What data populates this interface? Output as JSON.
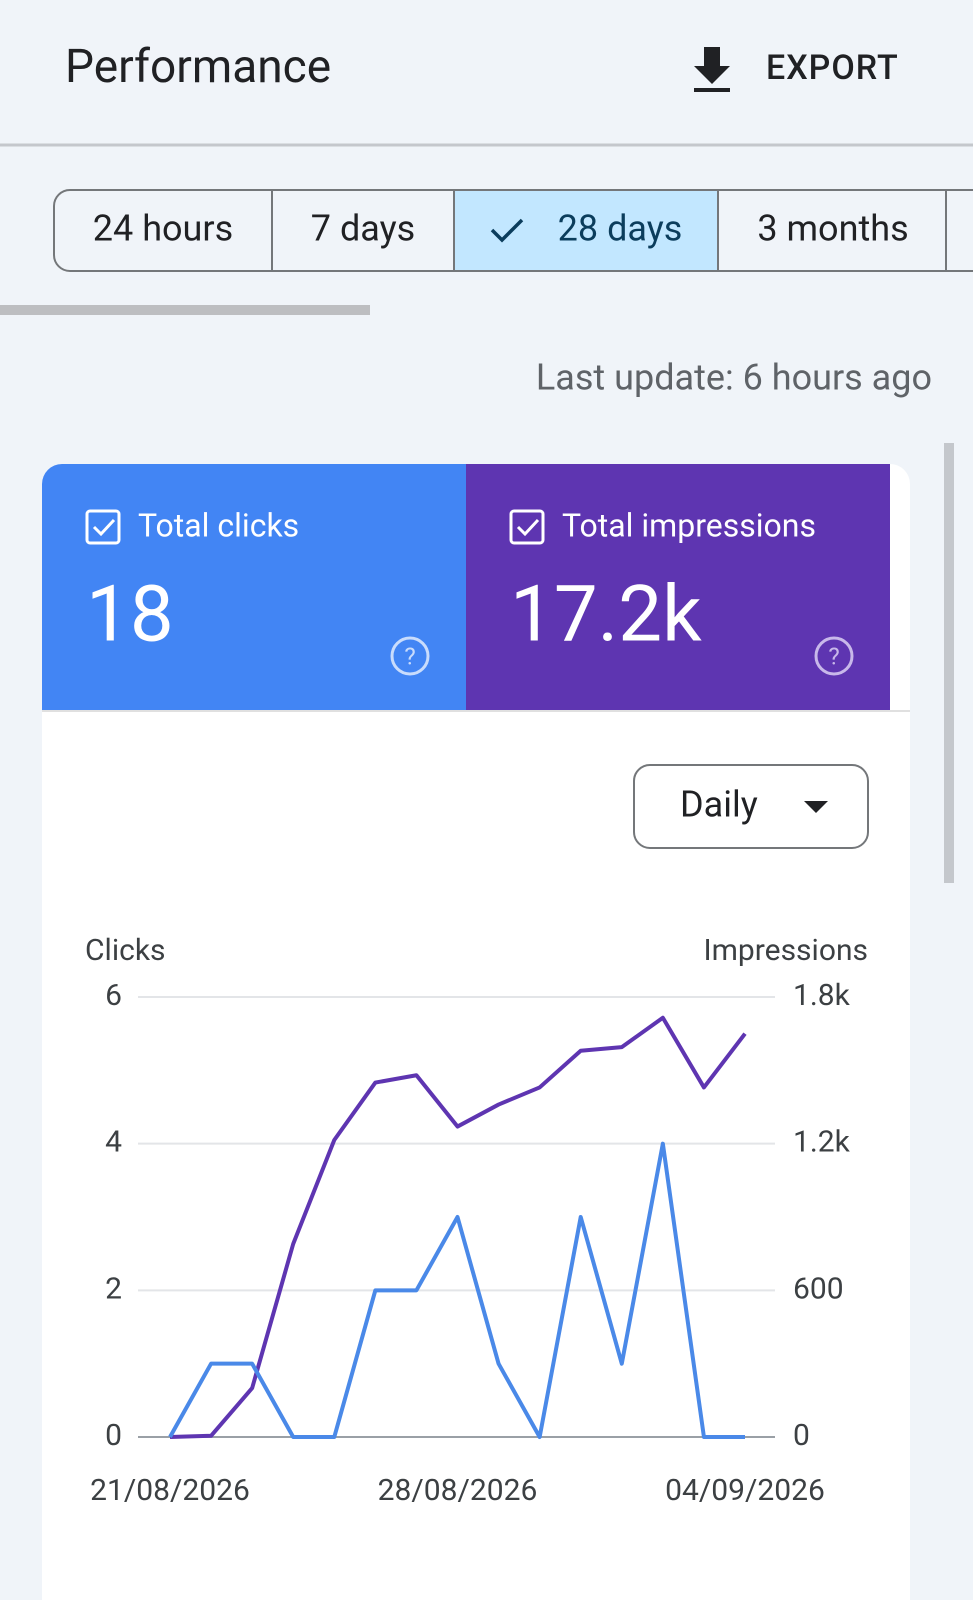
{
  "header": {
    "title": "Performance",
    "export": "EXPORT"
  },
  "tabs": [
    "24 hours",
    "7 days",
    "28 days",
    "3 months"
  ],
  "last_update": "Last update: 6 hours ago",
  "metrics": [
    {
      "label": "Total clicks",
      "value": "18"
    },
    {
      "label": "Total impressions",
      "value": "17.2k"
    }
  ],
  "dropdown": "Daily",
  "chart_data": {
    "type": "line",
    "y_label": "Clicks",
    "y2_label": "Impressions",
    "categories": [
      "21/08/2026",
      null,
      null,
      null,
      null,
      null,
      null,
      "28/08/2026",
      null,
      null,
      null,
      null,
      null,
      null,
      "04/09/2026"
    ],
    "series": [
      {
        "name": "Clicks",
        "color": "#4a89e8",
        "values": [
          0,
          1,
          1,
          0,
          0,
          2,
          2,
          3,
          1,
          0,
          3,
          1,
          4,
          0,
          0
        ]
      },
      {
        "name": "Impressions",
        "color": "#5e35b1",
        "axis": "y2",
        "values": [
          0,
          5,
          200,
          790,
          1215,
          1450,
          1480,
          1270,
          1360,
          1430,
          1580,
          1595,
          1715,
          1430,
          1650
        ]
      }
    ],
    "ylim": [
      0,
      6
    ],
    "yticks": [
      0,
      2,
      4,
      6
    ],
    "y2lim": [
      0,
      1800
    ],
    "y2ticks": [
      0,
      600,
      {
        "value": 1200,
        "label": "1.2k"
      },
      {
        "value": 1800,
        "label": "1.8k"
      }
    ],
    "grid": true
  }
}
